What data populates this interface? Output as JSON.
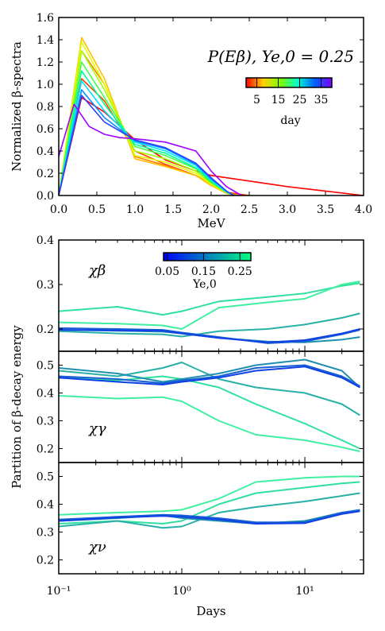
{
  "chart_data": [
    {
      "type": "line",
      "ylabel": "Normalized β-spectra",
      "xlabel": "MeV",
      "xlim": [
        0.0,
        4.0
      ],
      "ylim": [
        0.0,
        1.6
      ],
      "xticks": [
        "0.0",
        "0.5",
        "1.0",
        "1.5",
        "2.0",
        "2.5",
        "3.0",
        "3.5",
        "4.0"
      ],
      "yticks": [
        "0.0",
        "0.2",
        "0.4",
        "0.6",
        "0.8",
        "1.0",
        "1.2",
        "1.4",
        "1.6"
      ],
      "annotation": "P(Eβ), Ye,0 = 0.25",
      "colorbar": {
        "label": "day",
        "ticks": [
          "5",
          "15",
          "25",
          "35"
        ],
        "range": [
          0,
          40
        ],
        "colormap": "rainbow"
      },
      "series": [
        {
          "day": 0.5,
          "color": "#ff0000",
          "x": [
            0,
            0.3,
            0.6,
            1.0,
            1.4,
            1.8,
            2.0,
            2.5,
            3.0,
            3.5,
            4.0
          ],
          "y": [
            0,
            0.88,
            0.75,
            0.5,
            0.32,
            0.22,
            0.18,
            0.13,
            0.08,
            0.04,
            0.0
          ]
        },
        {
          "day": 1,
          "color": "#ff4000",
          "x": [
            0,
            0.3,
            0.6,
            1.0,
            1.4,
            1.8,
            2.0,
            2.2,
            2.5
          ],
          "y": [
            0,
            1.05,
            0.85,
            0.4,
            0.28,
            0.18,
            0.1,
            0.03,
            0.0
          ]
        },
        {
          "day": 2,
          "color": "#ff8000",
          "x": [
            0,
            0.3,
            0.6,
            1.0,
            1.4,
            1.8,
            2.0,
            2.2,
            2.35
          ],
          "y": [
            0,
            1.3,
            1.0,
            0.35,
            0.27,
            0.18,
            0.09,
            0.03,
            0.0
          ]
        },
        {
          "day": 3,
          "color": "#ffc000",
          "x": [
            0,
            0.3,
            0.6,
            1.0,
            1.4,
            1.8,
            2.0,
            2.2,
            2.3
          ],
          "y": [
            0,
            1.42,
            1.05,
            0.33,
            0.26,
            0.18,
            0.09,
            0.02,
            0.0
          ]
        },
        {
          "day": 5,
          "color": "#e0ff00",
          "x": [
            0,
            0.3,
            0.6,
            1.0,
            1.4,
            1.8,
            2.0,
            2.2,
            2.3
          ],
          "y": [
            0,
            1.38,
            1.0,
            0.36,
            0.3,
            0.2,
            0.1,
            0.03,
            0.0
          ]
        },
        {
          "day": 8,
          "color": "#a0ff00",
          "x": [
            0,
            0.3,
            0.6,
            1.0,
            1.4,
            1.8,
            2.0,
            2.2,
            2.3
          ],
          "y": [
            0,
            1.3,
            0.95,
            0.4,
            0.33,
            0.22,
            0.11,
            0.03,
            0.0
          ]
        },
        {
          "day": 12,
          "color": "#40ff40",
          "x": [
            0,
            0.3,
            0.6,
            1.0,
            1.4,
            1.8,
            2.0,
            2.2,
            2.3
          ],
          "y": [
            0,
            1.2,
            0.88,
            0.44,
            0.36,
            0.24,
            0.12,
            0.03,
            0.0
          ]
        },
        {
          "day": 16,
          "color": "#00ffa0",
          "x": [
            0,
            0.3,
            0.6,
            1.0,
            1.4,
            1.8,
            2.0,
            2.2,
            2.3
          ],
          "y": [
            0,
            1.12,
            0.82,
            0.46,
            0.38,
            0.25,
            0.13,
            0.03,
            0.0
          ]
        },
        {
          "day": 20,
          "color": "#00e0ff",
          "x": [
            0,
            0.3,
            0.6,
            1.0,
            1.4,
            1.8,
            2.0,
            2.2,
            2.3
          ],
          "y": [
            0,
            1.03,
            0.76,
            0.48,
            0.4,
            0.27,
            0.14,
            0.04,
            0.0
          ]
        },
        {
          "day": 25,
          "color": "#0090ff",
          "x": [
            0,
            0.3,
            0.6,
            1.0,
            1.4,
            1.8,
            2.0,
            2.2,
            2.3
          ],
          "y": [
            0,
            0.95,
            0.7,
            0.49,
            0.42,
            0.28,
            0.15,
            0.04,
            0.0
          ]
        },
        {
          "day": 30,
          "color": "#3040ff",
          "x": [
            0,
            0.3,
            0.6,
            1.0,
            1.4,
            1.8,
            2.0,
            2.2,
            2.3
          ],
          "y": [
            0,
            0.9,
            0.66,
            0.5,
            0.43,
            0.29,
            0.16,
            0.04,
            0.0
          ]
        },
        {
          "day": 38,
          "color": "#a000ff",
          "x": [
            0,
            0.2,
            0.4,
            0.6,
            0.8,
            1.0,
            1.4,
            1.8,
            2.0,
            2.2,
            2.4
          ],
          "y": [
            0.35,
            0.82,
            0.62,
            0.55,
            0.52,
            0.51,
            0.48,
            0.4,
            0.22,
            0.08,
            0.0
          ]
        }
      ]
    },
    {
      "type": "line",
      "xscale": "log",
      "xlim": [
        0.1,
        30
      ],
      "ylim": [
        0.15,
        0.4
      ],
      "yticks": [
        "0.2",
        "0.3",
        "0.4"
      ],
      "annotation": "χβ",
      "colorbar": {
        "label": "Ye,0",
        "ticks": [
          "0.05",
          "0.15",
          "0.25"
        ],
        "range": [
          0.04,
          0.28
        ],
        "colormap": "winter"
      },
      "series": [
        {
          "ye": 0.25,
          "color": "#30e0a0",
          "x": [
            0.1,
            0.3,
            0.7,
            1,
            2,
            5,
            10,
            20,
            28
          ],
          "y": [
            0.24,
            0.25,
            0.232,
            0.24,
            0.262,
            0.272,
            0.28,
            0.297,
            0.303
          ]
        },
        {
          "ye": 0.22,
          "color": "#40f0a0",
          "x": [
            0.1,
            0.3,
            0.7,
            1,
            2,
            5,
            10,
            20,
            28
          ],
          "y": [
            0.215,
            0.212,
            0.208,
            0.2,
            0.248,
            0.26,
            0.268,
            0.3,
            0.307
          ]
        },
        {
          "ye": 0.17,
          "color": "#28b0a8",
          "x": [
            0.1,
            0.3,
            0.7,
            1,
            2,
            5,
            10,
            20,
            28
          ],
          "y": [
            0.195,
            0.19,
            0.188,
            0.183,
            0.195,
            0.2,
            0.21,
            0.225,
            0.235
          ]
        },
        {
          "ye": 0.12,
          "color": "#2090b0",
          "x": [
            0.1,
            0.3,
            0.7,
            1,
            2,
            5,
            10,
            20,
            28
          ],
          "y": [
            0.198,
            0.196,
            0.194,
            0.19,
            0.18,
            0.172,
            0.17,
            0.176,
            0.182
          ]
        },
        {
          "ye": 0.08,
          "color": "#1860d0",
          "x": [
            0.1,
            0.3,
            0.7,
            1,
            2,
            5,
            10,
            20,
            28
          ],
          "y": [
            0.202,
            0.2,
            0.198,
            0.192,
            0.182,
            0.168,
            0.172,
            0.188,
            0.198
          ]
        },
        {
          "ye": 0.05,
          "color": "#1040e8",
          "x": [
            0.1,
            0.3,
            0.7,
            1,
            2,
            5,
            10,
            20,
            28
          ],
          "y": [
            0.198,
            0.197,
            0.196,
            0.19,
            0.18,
            0.17,
            0.175,
            0.19,
            0.2
          ]
        }
      ]
    },
    {
      "type": "line",
      "xscale": "log",
      "xlim": [
        0.1,
        30
      ],
      "ylim": [
        0.15,
        0.55
      ],
      "yticks": [
        "0.2",
        "0.3",
        "0.4",
        "0.5"
      ],
      "ylabel": "Partition of β-decay energy",
      "annotation": "χγ",
      "series": [
        {
          "ye": 0.25,
          "color": "#40f0a0",
          "x": [
            0.1,
            0.3,
            0.7,
            1,
            2,
            4,
            10,
            20,
            28
          ],
          "y": [
            0.39,
            0.38,
            0.385,
            0.37,
            0.3,
            0.25,
            0.23,
            0.205,
            0.19
          ]
        },
        {
          "ye": 0.22,
          "color": "#30e0a0",
          "x": [
            0.1,
            0.3,
            0.7,
            1,
            2,
            4,
            10,
            20,
            28
          ],
          "y": [
            0.455,
            0.445,
            0.46,
            0.45,
            0.42,
            0.36,
            0.29,
            0.23,
            0.2
          ]
        },
        {
          "ye": 0.17,
          "color": "#28b0a8",
          "x": [
            0.1,
            0.3,
            0.7,
            1,
            2,
            4,
            10,
            20,
            28
          ],
          "y": [
            0.48,
            0.46,
            0.49,
            0.51,
            0.45,
            0.42,
            0.4,
            0.36,
            0.32
          ]
        },
        {
          "ye": 0.12,
          "color": "#2090b0",
          "x": [
            0.1,
            0.3,
            0.7,
            1,
            2,
            4,
            10,
            20,
            28
          ],
          "y": [
            0.49,
            0.47,
            0.44,
            0.45,
            0.47,
            0.5,
            0.52,
            0.48,
            0.42
          ]
        },
        {
          "ye": 0.08,
          "color": "#1860d0",
          "x": [
            0.1,
            0.3,
            0.7,
            1,
            2,
            4,
            10,
            20,
            28
          ],
          "y": [
            0.46,
            0.45,
            0.435,
            0.445,
            0.46,
            0.49,
            0.5,
            0.46,
            0.425
          ]
        },
        {
          "ye": 0.05,
          "color": "#1040e8",
          "x": [
            0.1,
            0.3,
            0.7,
            1,
            2,
            4,
            10,
            20,
            28
          ],
          "y": [
            0.455,
            0.44,
            0.43,
            0.44,
            0.455,
            0.48,
            0.495,
            0.455,
            0.42
          ]
        }
      ]
    },
    {
      "type": "line",
      "xscale": "log",
      "xlim": [
        0.1,
        30
      ],
      "ylim": [
        0.15,
        0.55
      ],
      "yticks": [
        "0.2",
        "0.3",
        "0.4",
        "0.5"
      ],
      "xlabel": "Days",
      "xticks": [
        "10⁻¹",
        "10⁰",
        "10¹"
      ],
      "annotation": "χν",
      "series": [
        {
          "ye": 0.25,
          "color": "#40f0a0",
          "x": [
            0.1,
            0.3,
            0.7,
            1,
            2,
            4,
            10,
            20,
            28
          ],
          "y": [
            0.362,
            0.37,
            0.375,
            0.38,
            0.42,
            0.48,
            0.495,
            0.5,
            0.5
          ]
        },
        {
          "ye": 0.22,
          "color": "#30e0a0",
          "x": [
            0.1,
            0.3,
            0.7,
            1,
            2,
            4,
            10,
            20,
            28
          ],
          "y": [
            0.33,
            0.34,
            0.33,
            0.34,
            0.4,
            0.44,
            0.46,
            0.475,
            0.48
          ]
        },
        {
          "ye": 0.17,
          "color": "#28b0a8",
          "x": [
            0.1,
            0.3,
            0.7,
            1,
            2,
            4,
            10,
            20,
            28
          ],
          "y": [
            0.32,
            0.34,
            0.315,
            0.32,
            0.37,
            0.39,
            0.41,
            0.43,
            0.44
          ]
        },
        {
          "ye": 0.12,
          "color": "#2090b0",
          "x": [
            0.1,
            0.3,
            0.7,
            1,
            2,
            4,
            10,
            20,
            28
          ],
          "y": [
            0.34,
            0.35,
            0.36,
            0.35,
            0.34,
            0.33,
            0.34,
            0.37,
            0.38
          ]
        },
        {
          "ye": 0.08,
          "color": "#1860d0",
          "x": [
            0.1,
            0.3,
            0.7,
            1,
            2,
            4,
            10,
            20,
            28
          ],
          "y": [
            0.345,
            0.355,
            0.362,
            0.36,
            0.35,
            0.335,
            0.335,
            0.37,
            0.378
          ]
        },
        {
          "ye": 0.05,
          "color": "#1040e8",
          "x": [
            0.1,
            0.3,
            0.7,
            1,
            2,
            4,
            10,
            20,
            28
          ],
          "y": [
            0.34,
            0.352,
            0.358,
            0.355,
            0.345,
            0.33,
            0.332,
            0.365,
            0.375
          ]
        }
      ]
    }
  ]
}
